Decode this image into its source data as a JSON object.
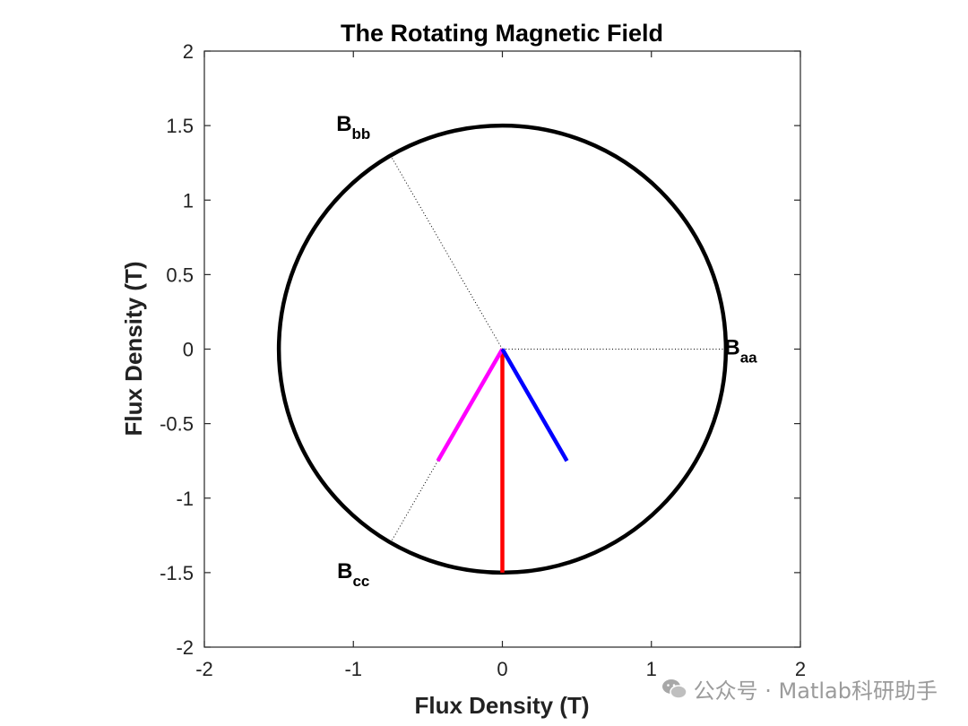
{
  "chart_data": {
    "type": "line",
    "title": "The Rotating Magnetic Field",
    "xlabel": "Flux Density (T)",
    "ylabel": "Flux Density (T)",
    "xlim": [
      -2,
      2
    ],
    "ylim": [
      -2,
      2
    ],
    "xticks": [
      -2,
      -1,
      0,
      1,
      2
    ],
    "yticks": [
      2,
      1.5,
      1,
      0.5,
      0,
      -0.5,
      -1,
      -1.5,
      -2
    ],
    "xtick_labels": [
      "-2",
      "-1",
      "0",
      "1",
      "2"
    ],
    "ytick_labels": [
      "2",
      "1.5",
      "1",
      "0.5",
      "0",
      "-0.5",
      "-1",
      "-1.5",
      "-2"
    ],
    "circle": {
      "center": [
        0,
        0
      ],
      "radius": 1.5,
      "color": "#000000"
    },
    "reference_lines": [
      {
        "name": "aa",
        "from": [
          0,
          0
        ],
        "to": [
          1.5,
          0
        ]
      },
      {
        "name": "bb",
        "from": [
          0,
          0
        ],
        "to": [
          -0.75,
          1.299
        ]
      },
      {
        "name": "cc",
        "from": [
          0,
          0
        ],
        "to": [
          -0.75,
          -1.299
        ]
      }
    ],
    "vectors": [
      {
        "name": "net-field",
        "from": [
          0,
          0
        ],
        "to": [
          0,
          -1.5
        ],
        "color": "#ff0000"
      },
      {
        "name": "phase-b",
        "from": [
          0,
          0
        ],
        "to": [
          -0.433,
          -0.75
        ],
        "color": "#ff00ff"
      },
      {
        "name": "phase-c",
        "from": [
          0,
          0
        ],
        "to": [
          0.433,
          -0.75
        ],
        "color": "#0000ff"
      }
    ],
    "annotations": [
      {
        "name": "baa",
        "main": "B",
        "sub": "aa",
        "x": 1.6,
        "y": 0
      },
      {
        "name": "bbb",
        "main": "B",
        "sub": "bb",
        "x": -1.0,
        "y": 1.5
      },
      {
        "name": "bcc",
        "main": "B",
        "sub": "cc",
        "x": -1.0,
        "y": -1.5
      }
    ]
  },
  "watermark": {
    "text": "公众号 · Matlab科研助手"
  }
}
